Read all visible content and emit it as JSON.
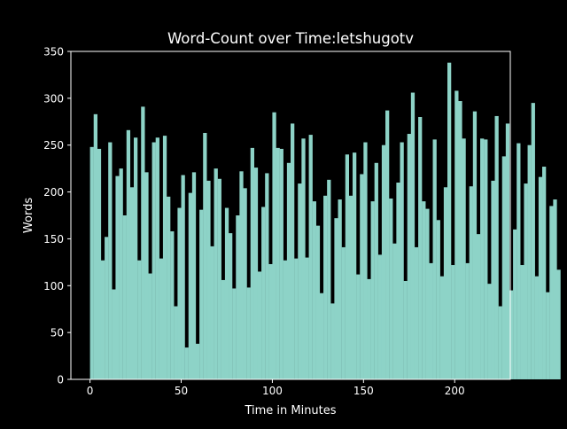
{
  "chart_data": {
    "type": "bar",
    "title": "Word-Count over Time:letshugotv",
    "xlabel": "Time in Minutes",
    "ylabel": "Words",
    "xlim": [
      -10.5,
      230.5
    ],
    "ylim": [
      0,
      350
    ],
    "xticks": [
      0,
      50,
      100,
      150,
      200
    ],
    "yticks": [
      0,
      50,
      100,
      150,
      200,
      250,
      300,
      350
    ],
    "grid": false,
    "bar_color": "#8dd3c7",
    "background": "#000000",
    "foreground": "#ffffff",
    "x_start": 0,
    "x_step": 2,
    "values": [
      248,
      283,
      246,
      127,
      152,
      253,
      96,
      217,
      225,
      175,
      266,
      205,
      258,
      127,
      291,
      221,
      113,
      253,
      258,
      129,
      260,
      195,
      158,
      78,
      183,
      218,
      34,
      199,
      221,
      38,
      181,
      263,
      212,
      142,
      225,
      214,
      106,
      183,
      156,
      97,
      175,
      222,
      204,
      98,
      247,
      226,
      115,
      184,
      220,
      123,
      285,
      247,
      246,
      127,
      231,
      273,
      129,
      209,
      257,
      130,
      261,
      190,
      164,
      92,
      196,
      213,
      81,
      172,
      192,
      141,
      240,
      196,
      242,
      112,
      219,
      253,
      107,
      190,
      231,
      133,
      250,
      287,
      193,
      145,
      210,
      253,
      105,
      262,
      306,
      141,
      280,
      190,
      182,
      124,
      256,
      170,
      110,
      205,
      338,
      122,
      308,
      297,
      257,
      124,
      206,
      286,
      155,
      257,
      256,
      102,
      212,
      281,
      78,
      238,
      273,
      95,
      160,
      252,
      122,
      209,
      250,
      295,
      110,
      216,
      227,
      93,
      185,
      192,
      117
    ]
  }
}
